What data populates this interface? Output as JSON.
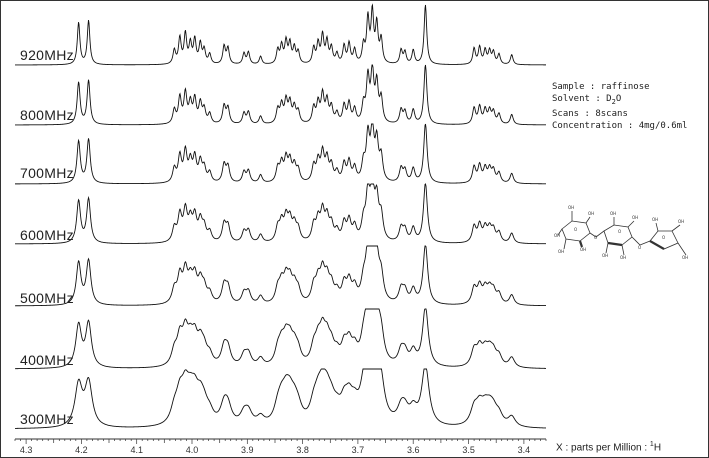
{
  "chart_data": {
    "type": "line",
    "title": "",
    "xlabel": "X : parts per Million : 1H",
    "ylabel": "",
    "xlim": [
      4.32,
      3.36
    ],
    "x_ticks": [
      "4.3",
      "4.2",
      "4.1",
      "4.0",
      "3.9",
      "3.8",
      "3.7",
      "3.6",
      "3.5",
      "3.4"
    ],
    "x_tick_values": [
      4.3,
      4.2,
      4.1,
      4.0,
      3.9,
      3.8,
      3.7,
      3.6,
      3.5,
      3.4
    ],
    "series": [
      {
        "name": "920MHz",
        "baseline": 64,
        "width": 0.0028
      },
      {
        "name": "800MHz",
        "baseline": 124,
        "width": 0.0032
      },
      {
        "name": "700MHz",
        "baseline": 183,
        "width": 0.0036
      },
      {
        "name": "600MHz",
        "baseline": 243,
        "width": 0.0042
      },
      {
        "name": "500MHz",
        "baseline": 305,
        "width": 0.005
      },
      {
        "name": "400MHz",
        "baseline": 368,
        "width": 0.0062
      },
      {
        "name": "300MHz",
        "baseline": 428,
        "width": 0.008
      }
    ],
    "peaks": [
      {
        "ppm": 4.205,
        "h": 42
      },
      {
        "ppm": 4.187,
        "h": 44
      },
      {
        "ppm": 4.032,
        "h": 14
      },
      {
        "ppm": 4.022,
        "h": 26
      },
      {
        "ppm": 4.012,
        "h": 30
      },
      {
        "ppm": 4.003,
        "h": 20
      },
      {
        "ppm": 3.995,
        "h": 24
      },
      {
        "ppm": 3.985,
        "h": 20
      },
      {
        "ppm": 3.978,
        "h": 14
      },
      {
        "ppm": 3.968,
        "h": 10
      },
      {
        "ppm": 3.942,
        "h": 18
      },
      {
        "ppm": 3.935,
        "h": 16
      },
      {
        "ppm": 3.906,
        "h": 11
      },
      {
        "ppm": 3.898,
        "h": 12
      },
      {
        "ppm": 3.876,
        "h": 8
      },
      {
        "ppm": 3.845,
        "h": 14
      },
      {
        "ppm": 3.838,
        "h": 18
      },
      {
        "ppm": 3.83,
        "h": 22
      },
      {
        "ppm": 3.823,
        "h": 20
      },
      {
        "ppm": 3.815,
        "h": 16
      },
      {
        "ppm": 3.808,
        "h": 12
      },
      {
        "ppm": 3.78,
        "h": 16
      },
      {
        "ppm": 3.772,
        "h": 20
      },
      {
        "ppm": 3.764,
        "h": 28
      },
      {
        "ppm": 3.756,
        "h": 22
      },
      {
        "ppm": 3.748,
        "h": 16
      },
      {
        "ppm": 3.738,
        "h": 10
      },
      {
        "ppm": 3.725,
        "h": 18
      },
      {
        "ppm": 3.716,
        "h": 20
      },
      {
        "ppm": 3.706,
        "h": 14
      },
      {
        "ppm": 3.69,
        "h": 18
      },
      {
        "ppm": 3.682,
        "h": 44
      },
      {
        "ppm": 3.674,
        "h": 50
      },
      {
        "ppm": 3.666,
        "h": 38
      },
      {
        "ppm": 3.658,
        "h": 24
      },
      {
        "ppm": 3.622,
        "h": 14
      },
      {
        "ppm": 3.615,
        "h": 12
      },
      {
        "ppm": 3.6,
        "h": 14
      },
      {
        "ppm": 3.578,
        "h": 60
      },
      {
        "ppm": 3.49,
        "h": 16
      },
      {
        "ppm": 3.48,
        "h": 17
      },
      {
        "ppm": 3.47,
        "h": 14
      },
      {
        "ppm": 3.462,
        "h": 13
      },
      {
        "ppm": 3.455,
        "h": 12
      },
      {
        "ppm": 3.445,
        "h": 10
      },
      {
        "ppm": 3.422,
        "h": 10
      }
    ]
  },
  "info": {
    "sample": "Sample : raffinose",
    "solvent_prefix": "Solvent : D",
    "solvent_sub": "2",
    "solvent_suffix": "O",
    "scans": "Scans : 8scans",
    "concentration": "Concentration : 4mg/0.6ml"
  },
  "axis_title": {
    "prefix": "X : parts per Million : ",
    "sup": "1",
    "suffix": "H"
  },
  "molecule": {
    "labels": [
      "OH",
      "OH",
      "OH",
      "OH",
      "OH",
      "OH",
      "OH",
      "OH",
      "OH",
      "OH",
      "OH",
      "O",
      "O",
      "O",
      "O",
      "O",
      "OH"
    ]
  }
}
